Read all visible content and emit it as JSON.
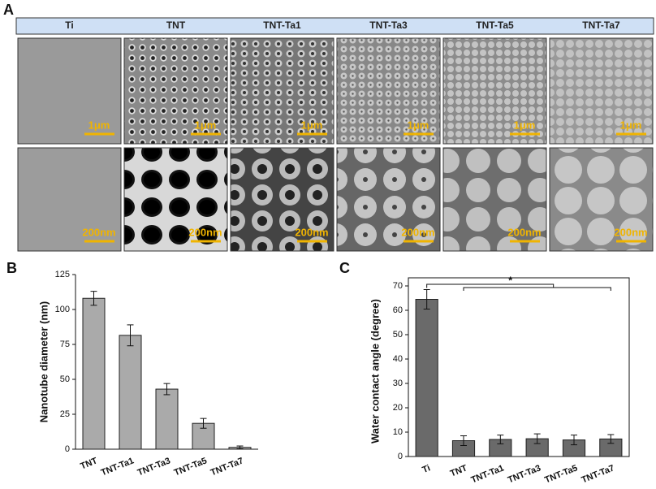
{
  "panel_labels": [
    "A",
    "B",
    "C"
  ],
  "sem_columns": [
    "Ti",
    "TNT",
    "TNT-Ta1",
    "TNT-Ta3",
    "TNT-Ta5",
    "TNT-Ta7"
  ],
  "scale_bars": [
    "1μm",
    "200nm"
  ],
  "chart_data": [
    {
      "type": "bar",
      "y_label": "Nanotube diameter (nm)",
      "categories": [
        "TNT",
        "TNT-Ta1",
        "TNT-Ta3",
        "TNT-Ta5",
        "TNT-Ta7"
      ],
      "values": [
        108,
        81.5,
        43,
        18.5,
        1.3
      ],
      "errors": [
        5,
        7.5,
        4,
        3.5,
        1
      ],
      "color": "#aaaaaa",
      "ylim": [
        0,
        125
      ],
      "yticks": [
        0,
        25,
        50,
        75,
        100,
        125
      ],
      "frame": false
    },
    {
      "type": "bar",
      "y_label": "Water contact angle (degree)",
      "categories": [
        "Ti",
        "TNT",
        "TNT-Ta1",
        "TNT-Ta3",
        "TNT-Ta5",
        "TNT-Ta7"
      ],
      "values": [
        64.5,
        6.5,
        7,
        7.3,
        6.8,
        7.2
      ],
      "errors": [
        4,
        2,
        1.8,
        2,
        2,
        1.8
      ],
      "color": "#6a6a6a",
      "ylim": [
        0,
        70
      ],
      "yticks": [
        0,
        10,
        20,
        30,
        40,
        50,
        60,
        70
      ],
      "frame": true,
      "annotation": "*"
    }
  ]
}
